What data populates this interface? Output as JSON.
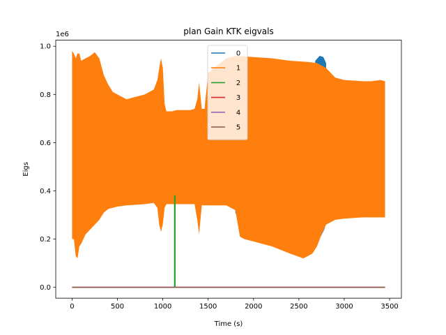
{
  "chart_data": {
    "type": "line",
    "title": "plan Gain KTK eigvals",
    "xlabel": "Time (s)",
    "ylabel": "Eigs",
    "y_offset_label": "1e6",
    "xlim": [
      -180,
      3630
    ],
    "ylim": [
      -0.045,
      1.025
    ],
    "y_scale_factor": 1000000,
    "xticks": [
      0,
      500,
      1000,
      1500,
      2000,
      2500,
      3000,
      3500
    ],
    "xtick_labels": [
      "0",
      "500",
      "1000",
      "1500",
      "2000",
      "2500",
      "3000",
      "3500"
    ],
    "yticks": [
      0.0,
      0.2,
      0.4,
      0.6,
      0.8,
      1.0
    ],
    "ytick_labels": [
      "0.0",
      "0.2",
      "0.4",
      "0.6",
      "0.8",
      "1.0"
    ],
    "grid": false,
    "legend_position": "top-center",
    "series": [
      {
        "name": "0",
        "color": "#1f77b4",
        "style": "band",
        "upper": [
          [
            2680,
            0.94
          ],
          [
            2730,
            0.96
          ],
          [
            2770,
            0.955
          ],
          [
            2800,
            0.93
          ]
        ],
        "lower": [
          [
            1800,
            0.31
          ],
          [
            1810,
            0.3
          ],
          [
            2740,
            0.21
          ],
          [
            2780,
            0.24
          ],
          [
            2810,
            0.28
          ]
        ]
      },
      {
        "name": "1",
        "color": "#ff7f0e",
        "style": "band",
        "upper": [
          [
            0,
            0.98
          ],
          [
            20,
            0.97
          ],
          [
            40,
            0.95
          ],
          [
            60,
            0.97
          ],
          [
            80,
            0.97
          ],
          [
            100,
            0.94
          ],
          [
            150,
            0.95
          ],
          [
            200,
            0.96
          ],
          [
            250,
            0.975
          ],
          [
            300,
            0.95
          ],
          [
            350,
            0.88
          ],
          [
            400,
            0.84
          ],
          [
            450,
            0.81
          ],
          [
            500,
            0.8
          ],
          [
            550,
            0.79
          ],
          [
            600,
            0.78
          ],
          [
            700,
            0.79
          ],
          [
            800,
            0.8
          ],
          [
            900,
            0.82
          ],
          [
            940,
            0.86
          ],
          [
            970,
            0.93
          ],
          [
            980,
            0.95
          ],
          [
            1000,
            0.91
          ],
          [
            1020,
            0.76
          ],
          [
            1040,
            0.73
          ],
          [
            1100,
            0.73
          ],
          [
            1150,
            0.735
          ],
          [
            1300,
            0.735
          ],
          [
            1350,
            0.74
          ],
          [
            1380,
            0.78
          ],
          [
            1400,
            0.85
          ],
          [
            1430,
            0.74
          ],
          [
            1460,
            0.74
          ],
          [
            1500,
            0.89
          ],
          [
            1600,
            0.92
          ],
          [
            1700,
            0.95
          ],
          [
            1800,
            0.96
          ],
          [
            2000,
            0.955
          ],
          [
            2200,
            0.95
          ],
          [
            2400,
            0.94
          ],
          [
            2600,
            0.935
          ],
          [
            2700,
            0.93
          ],
          [
            2800,
            0.91
          ],
          [
            2900,
            0.87
          ],
          [
            3000,
            0.86
          ],
          [
            3200,
            0.855
          ],
          [
            3300,
            0.855
          ],
          [
            3400,
            0.86
          ],
          [
            3450,
            0.855
          ]
        ],
        "lower": [
          [
            0,
            0.2
          ],
          [
            20,
            0.2
          ],
          [
            40,
            0.13
          ],
          [
            60,
            0.12
          ],
          [
            80,
            0.17
          ],
          [
            100,
            0.18
          ],
          [
            150,
            0.22
          ],
          [
            200,
            0.24
          ],
          [
            250,
            0.26
          ],
          [
            300,
            0.28
          ],
          [
            350,
            0.31
          ],
          [
            400,
            0.325
          ],
          [
            500,
            0.335
          ],
          [
            600,
            0.34
          ],
          [
            700,
            0.342
          ],
          [
            800,
            0.345
          ],
          [
            900,
            0.35
          ],
          [
            940,
            0.33
          ],
          [
            960,
            0.26
          ],
          [
            980,
            0.23
          ],
          [
            1000,
            0.26
          ],
          [
            1020,
            0.33
          ],
          [
            1040,
            0.345
          ],
          [
            1300,
            0.345
          ],
          [
            1350,
            0.345
          ],
          [
            1380,
            0.28
          ],
          [
            1400,
            0.22
          ],
          [
            1430,
            0.34
          ],
          [
            1700,
            0.34
          ],
          [
            1800,
            0.32
          ],
          [
            1850,
            0.21
          ],
          [
            1900,
            0.2
          ],
          [
            2000,
            0.19
          ],
          [
            2200,
            0.17
          ],
          [
            2400,
            0.14
          ],
          [
            2550,
            0.12
          ],
          [
            2650,
            0.14
          ],
          [
            2700,
            0.17
          ],
          [
            2750,
            0.22
          ],
          [
            2800,
            0.26
          ],
          [
            2900,
            0.28
          ],
          [
            3000,
            0.285
          ],
          [
            3200,
            0.29
          ],
          [
            3400,
            0.29
          ],
          [
            3450,
            0.29
          ]
        ]
      },
      {
        "name": "2",
        "color": "#2ca02c",
        "style": "line",
        "points": [
          [
            1130,
            0.0
          ],
          [
            1130,
            0.38
          ],
          [
            1135,
            0.38
          ],
          [
            1135,
            0.0
          ]
        ]
      },
      {
        "name": "3",
        "color": "#d62728",
        "style": "line",
        "points": [
          [
            0,
            0.0
          ],
          [
            3450,
            0.0
          ]
        ]
      },
      {
        "name": "4",
        "color": "#9467bd",
        "style": "line",
        "points": [
          [
            0,
            0.0
          ],
          [
            3450,
            0.0
          ]
        ]
      },
      {
        "name": "5",
        "color": "#8c564b",
        "style": "line",
        "points": [
          [
            0,
            0.0
          ],
          [
            3450,
            0.0
          ]
        ]
      }
    ]
  }
}
